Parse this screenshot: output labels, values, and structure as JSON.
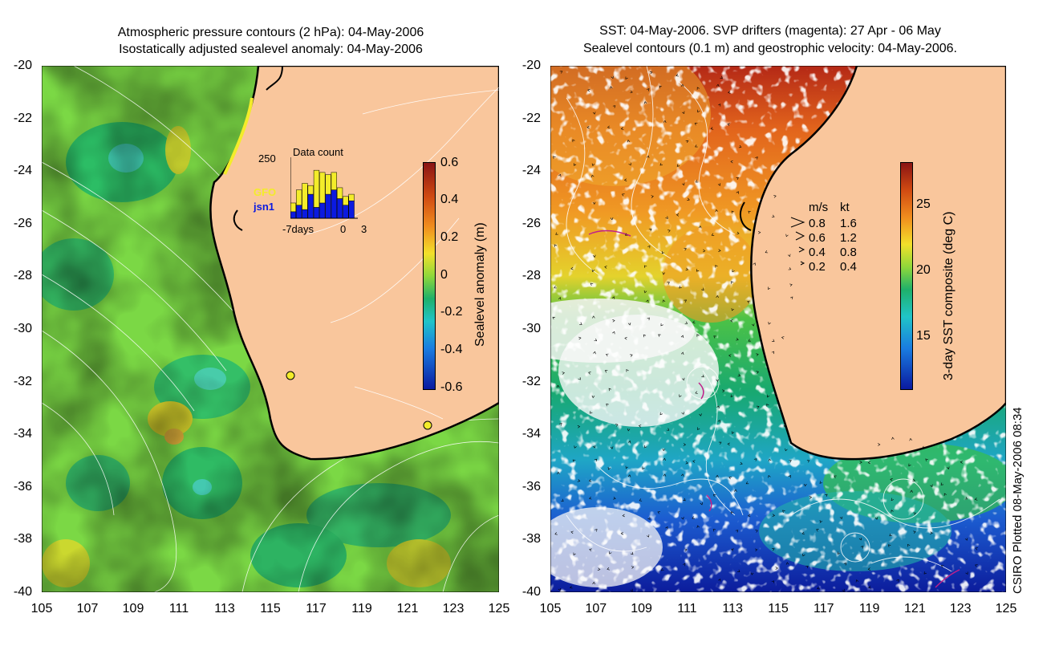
{
  "left_panel": {
    "title_line1": "Atmospheric pressure contours (2 hPa): 04-May-2006",
    "title_line2": "Isostatically adjusted sealevel anomaly: 04-May-2006",
    "colorbar": {
      "label": "Sealevel anomaly (m)",
      "ticks": [
        "0.6",
        "0.4",
        "0.2",
        "0",
        "-0.2",
        "-0.4",
        "-0.6"
      ]
    },
    "inset": {
      "title": "Data count",
      "ymax_label": "250",
      "legend": [
        "GFO",
        "jsn1"
      ],
      "xlabels": [
        "-7days",
        "0",
        "3"
      ],
      "gfo_counts": [
        40,
        70,
        120,
        40,
        170,
        140,
        90,
        80,
        50,
        40,
        30
      ],
      "jsn1_counts": [
        30,
        60,
        40,
        110,
        50,
        70,
        110,
        130,
        90,
        60,
        80
      ]
    }
  },
  "right_panel": {
    "title_line1": "SST: 04-May-2006. SVP drifters (magenta): 27 Apr - 06 May",
    "title_line2": "Sealevel contours (0.1 m) and geostrophic velocity: 04-May-2006.",
    "colorbar": {
      "label": "3-day SST composite (deg C)",
      "ticks": [
        "25",
        "20",
        "15"
      ]
    },
    "velocity_legend": {
      "header_ms": "m/s",
      "header_kt": "kt",
      "rows": [
        {
          "ms": "0.8",
          "kt": "1.6"
        },
        {
          "ms": "0.6",
          "kt": "1.2"
        },
        {
          "ms": "0.4",
          "kt": "0.8"
        },
        {
          "ms": "0.2",
          "kt": "0.4"
        }
      ]
    }
  },
  "axes": {
    "lat_ticks": [
      "-20",
      "-22",
      "-24",
      "-26",
      "-28",
      "-30",
      "-32",
      "-34",
      "-36",
      "-38",
      "-40"
    ],
    "lon_ticks": [
      "105",
      "107",
      "109",
      "111",
      "113",
      "115",
      "117",
      "119",
      "121",
      "123",
      "125"
    ]
  },
  "stamp": "CSIRO Plotted 08-May-2006 08:34",
  "colors": {
    "land": "#f9c69c",
    "coast": "#000000"
  }
}
